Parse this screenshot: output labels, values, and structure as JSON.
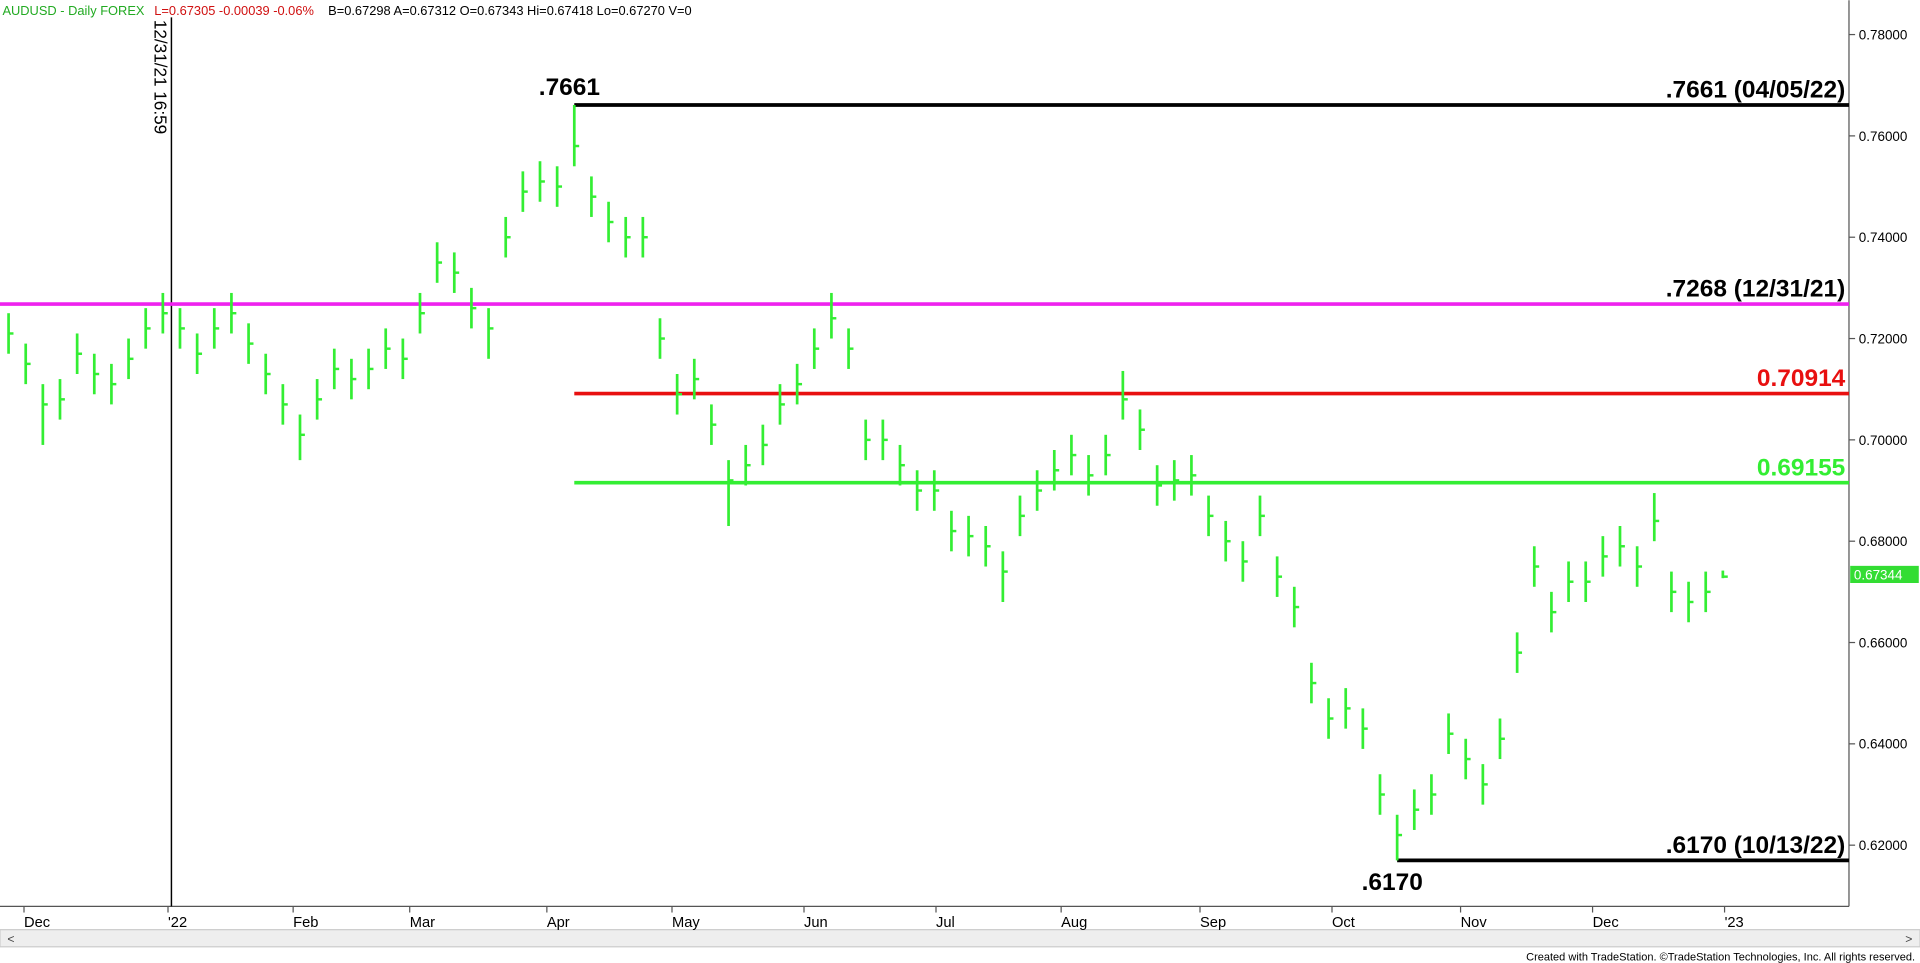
{
  "header": {
    "symbol": "AUDUSD - Daily FOREX",
    "last": "L=0.67305 -0.00039 -0.06%",
    "quote": "B=0.67298  A=0.67312  O=0.67343  Hi=0.67418  Lo=0.67270  V=0"
  },
  "footer": "Created with TradeStation. ©TradeStation Technologies, Inc. All rights reserved.",
  "chart_data": {
    "type": "hlc",
    "color": "#33ee33",
    "xlim": [
      0,
      108
    ],
    "xticks": [
      {
        "value": 1.4,
        "label": "Dec"
      },
      {
        "value": 9.8,
        "label": "'22"
      },
      {
        "value": 17.1,
        "label": "Feb"
      },
      {
        "value": 23.9,
        "label": "Mar"
      },
      {
        "value": 31.9,
        "label": "Apr"
      },
      {
        "value": 39.2,
        "label": "May"
      },
      {
        "value": 46.9,
        "label": "Jun"
      },
      {
        "value": 54.6,
        "label": "Jul"
      },
      {
        "value": 61.9,
        "label": "Aug"
      },
      {
        "value": 70,
        "label": "Sep"
      },
      {
        "value": 77.7,
        "label": "Oct"
      },
      {
        "value": 85.2,
        "label": "Nov"
      },
      {
        "value": 92.9,
        "label": "Dec"
      },
      {
        "value": 100.6,
        "label": "'23"
      }
    ],
    "ylim": [
      0.6169,
      0.7847
    ],
    "yticks": [
      {
        "value": 0.62,
        "label": "0.62000"
      },
      {
        "value": 0.64,
        "label": "0.64000"
      },
      {
        "value": 0.66,
        "label": "0.66000"
      },
      {
        "value": 0.68,
        "label": "0.68000"
      },
      {
        "value": 0.7,
        "label": "0.70000"
      },
      {
        "value": 0.72,
        "label": "0.72000"
      },
      {
        "value": 0.74,
        "label": "0.74000"
      },
      {
        "value": 0.76,
        "label": "0.76000"
      },
      {
        "value": 0.78,
        "label": "0.78000"
      }
    ],
    "high": [
      0.725,
      0.719,
      0.711,
      0.712,
      0.721,
      0.717,
      0.715,
      0.72,
      0.726,
      0.729,
      0.726,
      0.721,
      0.726,
      0.729,
      0.723,
      0.717,
      0.711,
      0.705,
      0.712,
      0.718,
      0.716,
      0.718,
      0.722,
      0.72,
      0.729,
      0.739,
      0.737,
      0.73,
      0.726,
      0.744,
      0.753,
      0.755,
      0.754,
      0.7661,
      0.752,
      0.747,
      0.744,
      0.744,
      0.724,
      0.713,
      0.716,
      0.707,
      0.696,
      0.699,
      0.703,
      0.711,
      0.715,
      0.722,
      0.729,
      0.722,
      0.704,
      0.704,
      0.699,
      0.694,
      0.694,
      0.686,
      0.685,
      0.683,
      0.678,
      0.689,
      0.694,
      0.698,
      0.701,
      0.697,
      0.701,
      0.7136,
      0.706,
      0.695,
      0.696,
      0.697,
      0.689,
      0.684,
      0.68,
      0.689,
      0.677,
      0.671,
      0.656,
      0.649,
      0.651,
      0.647,
      0.634,
      0.626,
      0.631,
      0.634,
      0.646,
      0.641,
      0.636,
      0.645,
      0.662,
      0.679,
      0.67,
      0.676,
      0.676,
      0.681,
      0.683,
      0.679,
      0.6895,
      0.674,
      0.672,
      0.674,
      0.6742
    ],
    "low": [
      0.717,
      0.711,
      0.699,
      0.704,
      0.713,
      0.709,
      0.707,
      0.712,
      0.718,
      0.721,
      0.718,
      0.713,
      0.718,
      0.721,
      0.715,
      0.709,
      0.703,
      0.696,
      0.704,
      0.71,
      0.708,
      0.71,
      0.714,
      0.712,
      0.721,
      0.731,
      0.729,
      0.722,
      0.716,
      0.736,
      0.745,
      0.747,
      0.746,
      0.754,
      0.744,
      0.739,
      0.736,
      0.736,
      0.716,
      0.705,
      0.708,
      0.699,
      0.683,
      0.691,
      0.695,
      0.703,
      0.707,
      0.714,
      0.72,
      0.714,
      0.696,
      0.696,
      0.691,
      0.686,
      0.686,
      0.678,
      0.677,
      0.675,
      0.668,
      0.681,
      0.686,
      0.69,
      0.693,
      0.689,
      0.693,
      0.704,
      0.698,
      0.687,
      0.688,
      0.689,
      0.681,
      0.676,
      0.672,
      0.681,
      0.669,
      0.663,
      0.648,
      0.641,
      0.643,
      0.639,
      0.626,
      0.617,
      0.623,
      0.626,
      0.638,
      0.633,
      0.628,
      0.637,
      0.654,
      0.671,
      0.662,
      0.668,
      0.668,
      0.673,
      0.675,
      0.671,
      0.68,
      0.666,
      0.664,
      0.666,
      0.6727
    ],
    "close": [
      0.721,
      0.715,
      0.707,
      0.708,
      0.717,
      0.713,
      0.711,
      0.716,
      0.722,
      0.725,
      0.722,
      0.717,
      0.722,
      0.725,
      0.719,
      0.713,
      0.707,
      0.701,
      0.708,
      0.714,
      0.712,
      0.714,
      0.718,
      0.716,
      0.725,
      0.735,
      0.733,
      0.726,
      0.722,
      0.74,
      0.749,
      0.751,
      0.75,
      0.758,
      0.748,
      0.743,
      0.74,
      0.74,
      0.72,
      0.709,
      0.712,
      0.703,
      0.692,
      0.695,
      0.699,
      0.707,
      0.711,
      0.718,
      0.724,
      0.718,
      0.7,
      0.7,
      0.695,
      0.69,
      0.69,
      0.682,
      0.681,
      0.679,
      0.674,
      0.685,
      0.69,
      0.694,
      0.697,
      0.693,
      0.697,
      0.708,
      0.702,
      0.691,
      0.692,
      0.693,
      0.685,
      0.68,
      0.676,
      0.685,
      0.673,
      0.667,
      0.652,
      0.645,
      0.647,
      0.643,
      0.63,
      0.622,
      0.627,
      0.63,
      0.642,
      0.637,
      0.632,
      0.641,
      0.658,
      0.675,
      0.666,
      0.672,
      0.672,
      0.677,
      0.679,
      0.675,
      0.684,
      0.67,
      0.668,
      0.67,
      0.673
    ],
    "hlines": [
      {
        "value": 0.7661,
        "label": ".7661 (04/05/22)",
        "color": "#000000",
        "x_start": 33.5
      },
      {
        "value": 0.7268,
        "label": ".7268 (12/31/21)",
        "color": "#ee22ee",
        "x_start": 0
      },
      {
        "value": 0.70914,
        "label": "0.70914",
        "color": "#e81010",
        "x_start": 33.5
      },
      {
        "value": 0.69155,
        "label": "0.69155",
        "color": "#33ee33",
        "x_start": 33.5
      },
      {
        "value": 0.617,
        "label": ".6170 (10/13/22)",
        "color": "#000000",
        "x_start": 81.5
      }
    ],
    "annotations": [
      {
        "text": ".7661",
        "x": 33.5,
        "y": 0.7661,
        "side": "above"
      },
      {
        "text": ".6170",
        "x": 81.5,
        "y": 0.617,
        "side": "below"
      }
    ],
    "vline": {
      "x": 10,
      "label": "12/31/21 16:59"
    },
    "last_price": {
      "value": 0.67344,
      "label": "0.67344"
    }
  }
}
